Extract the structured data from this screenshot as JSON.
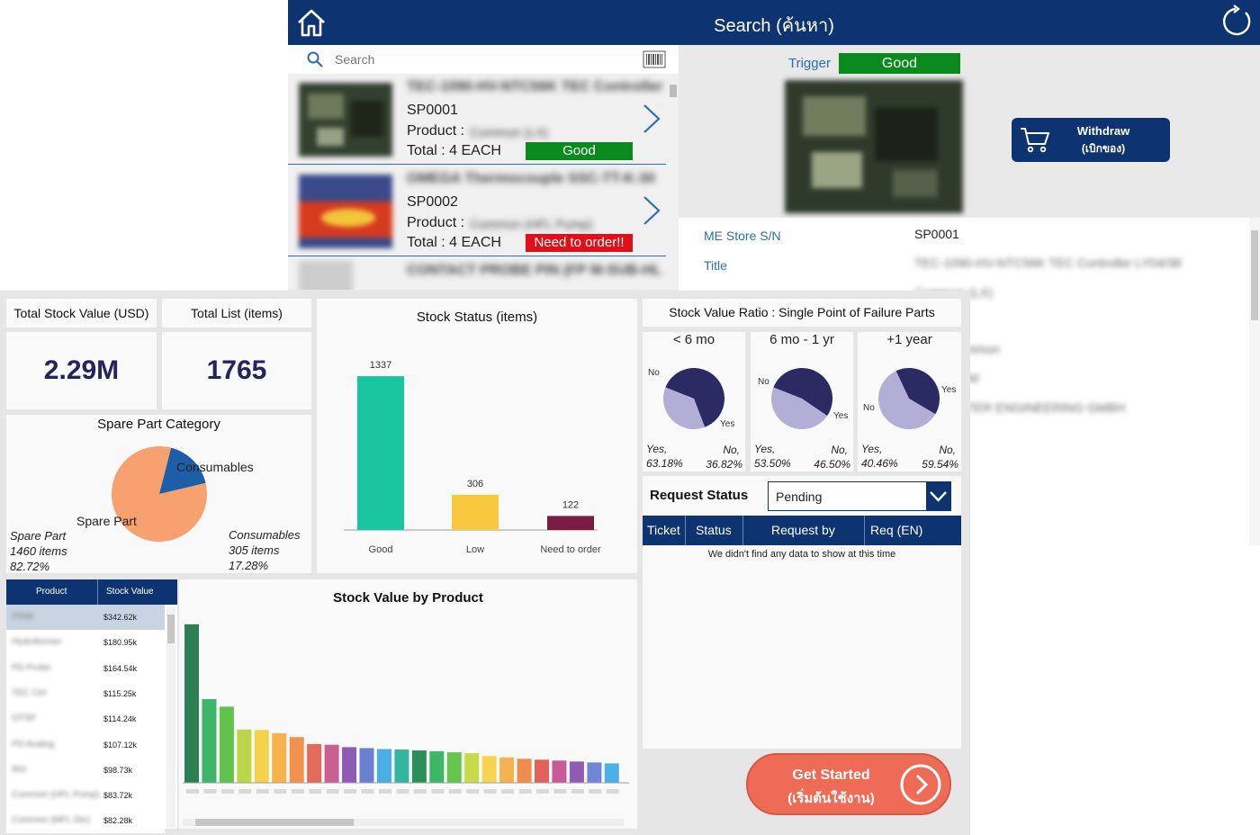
{
  "search_app": {
    "title": "Search (ค้นหา)",
    "search": {
      "placeholder": "Search"
    },
    "items": [
      {
        "title": "TEC-1090-HV-NTC56K TEC Controller",
        "id": "SP0001",
        "product_label": "Product :",
        "product_value": "Common (LX)",
        "total": "Total : 4 EACH",
        "status": "Good",
        "status_color": "#0a8a1c"
      },
      {
        "title": "OMEGA Thermocouple SSC-TT-K-30",
        "id": "SP0002",
        "product_label": "Product :",
        "product_value": "Common (HFL Pump)",
        "total": "Total : 4 EACH",
        "status": "Need to order!!",
        "status_color": "#e0101a"
      },
      {
        "title": "CONTACT PROBE PIN (FP M-SUB-HL"
      }
    ],
    "detail": {
      "trigger_label": "Trigger",
      "trigger_status": "Good",
      "withdraw_label": "Withdraw",
      "withdraw_sub": "(เบิกของ)",
      "fields": [
        {
          "label": "ME Store S/N",
          "value": "SP0001"
        },
        {
          "label": "Title",
          "value": "TEC-1090-HV-NTC56K TEC Controller LY04/38"
        }
      ],
      "blurred_values": [
        "Common (LX)",
        "Common",
        "ITEM",
        "LITTER ENGINEERING GMBH"
      ]
    }
  },
  "dashboard": {
    "kpis": [
      {
        "label": "Total Stock Value (USD)",
        "value": "2.29M"
      },
      {
        "label": "Total List (items)",
        "value": "1765"
      }
    ],
    "category": {
      "title": "Spare Part Category",
      "slice_labels": [
        "Consumables",
        "Spare Part"
      ],
      "left_legend": [
        "Spare Part",
        "1460 items",
        "82.72%"
      ],
      "right_legend": [
        "Consumables",
        "305 items",
        "17.28%"
      ],
      "colors": {
        "spare": "#f7a070",
        "consumables": "#1e5ea8"
      }
    },
    "stock_status": {
      "title": "Stock Status (items)"
    },
    "ratio": {
      "title": "Stock Value Ratio :  Single Point of Failure Parts",
      "groups": [
        {
          "title": "< 6 mo",
          "yes_pct": 63.18,
          "yes_text": "Yes,",
          "yes_val": "63.18%",
          "no_text": "No,",
          "no_val": "36.82%"
        },
        {
          "title": "6 mo - 1 yr",
          "yes_pct": 53.5,
          "yes_text": "Yes,",
          "yes_val": "53.50%",
          "no_text": "No,",
          "no_val": "46.50%"
        },
        {
          "title": "+1 year",
          "yes_pct": 40.46,
          "yes_text": "Yes,",
          "yes_val": "40.46%",
          "no_text": "No,",
          "no_val": "59.54%"
        }
      ],
      "slice_yes": "Yes",
      "slice_no": "No",
      "colors": {
        "yes": "#2b2a63",
        "no": "#b2aed6"
      }
    },
    "request": {
      "title": "Request Status",
      "selected": "Pending",
      "columns": [
        "Ticket",
        "Status",
        "Request by",
        "Req (EN)"
      ],
      "empty_text": "We didn't find any data to show at this time"
    },
    "get_started": {
      "label": "Get Started",
      "sub": "(เริ่มต้นใช้งาน)"
    },
    "product_table": {
      "columns": [
        "Product",
        "Stock Value"
      ],
      "rows": [
        {
          "name": "ITEM",
          "value": "$342.62k"
        },
        {
          "name": "Hydroformer",
          "value": "$180.95k"
        },
        {
          "name": "PD Probe",
          "value": "$164.54k"
        },
        {
          "name": "TEC Ctrl",
          "value": "$115.25k"
        },
        {
          "name": "OTSP",
          "value": "$114.24k"
        },
        {
          "name": "PD Analog",
          "value": "$107.12k"
        },
        {
          "name": "INV",
          "value": "$98.73k"
        },
        {
          "name": "Common (HFL Pump)",
          "value": "$83.72k"
        },
        {
          "name": "Common (MFL Div)",
          "value": "$82.28k"
        }
      ]
    }
  },
  "chart_data": [
    {
      "type": "pie",
      "title": "Spare Part Category",
      "categories": [
        "Spare Part",
        "Consumables"
      ],
      "values": [
        1460,
        305
      ],
      "percents": [
        82.72,
        17.28
      ]
    },
    {
      "type": "bar",
      "title": "Stock Status (items)",
      "categories": [
        "Good",
        "Low",
        "Need to order"
      ],
      "values": [
        1337,
        306,
        122
      ],
      "colors": [
        "#18c59e",
        "#f8c93e",
        "#7a1c42"
      ],
      "ylim": [
        0,
        1400
      ]
    },
    {
      "type": "bar",
      "title": "Stock Value by Product",
      "values": [
        342.62,
        180.95,
        164.54,
        115.25,
        114.24,
        107.12,
        98.73,
        83.72,
        82.28,
        77,
        75,
        73,
        72,
        70,
        68,
        66,
        64,
        58,
        55,
        52,
        50,
        48,
        46,
        44,
        42,
        40,
        38,
        36
      ],
      "colors": [
        "#2c7f52",
        "#3fb56a",
        "#61c34b",
        "#bcd64a",
        "#f4d24b",
        "#f6b24c",
        "#f1924f",
        "#e46a5a",
        "#cb5e93",
        "#8e5ab3",
        "#6a7fd0",
        "#4aaee6",
        "#32b6a0",
        "#2c8f5a",
        "#3cb766",
        "#64c74b",
        "#c6da4a",
        "#f6d350",
        "#f5b24e",
        "#ee8d4e",
        "#e1625b",
        "#c85a96",
        "#8f5bb4",
        "#6e86d3",
        "#4ab0e8",
        "#2fb8a0",
        "#2f8f59",
        "#43bb62"
      ],
      "ylim": [
        0,
        350
      ]
    }
  ]
}
